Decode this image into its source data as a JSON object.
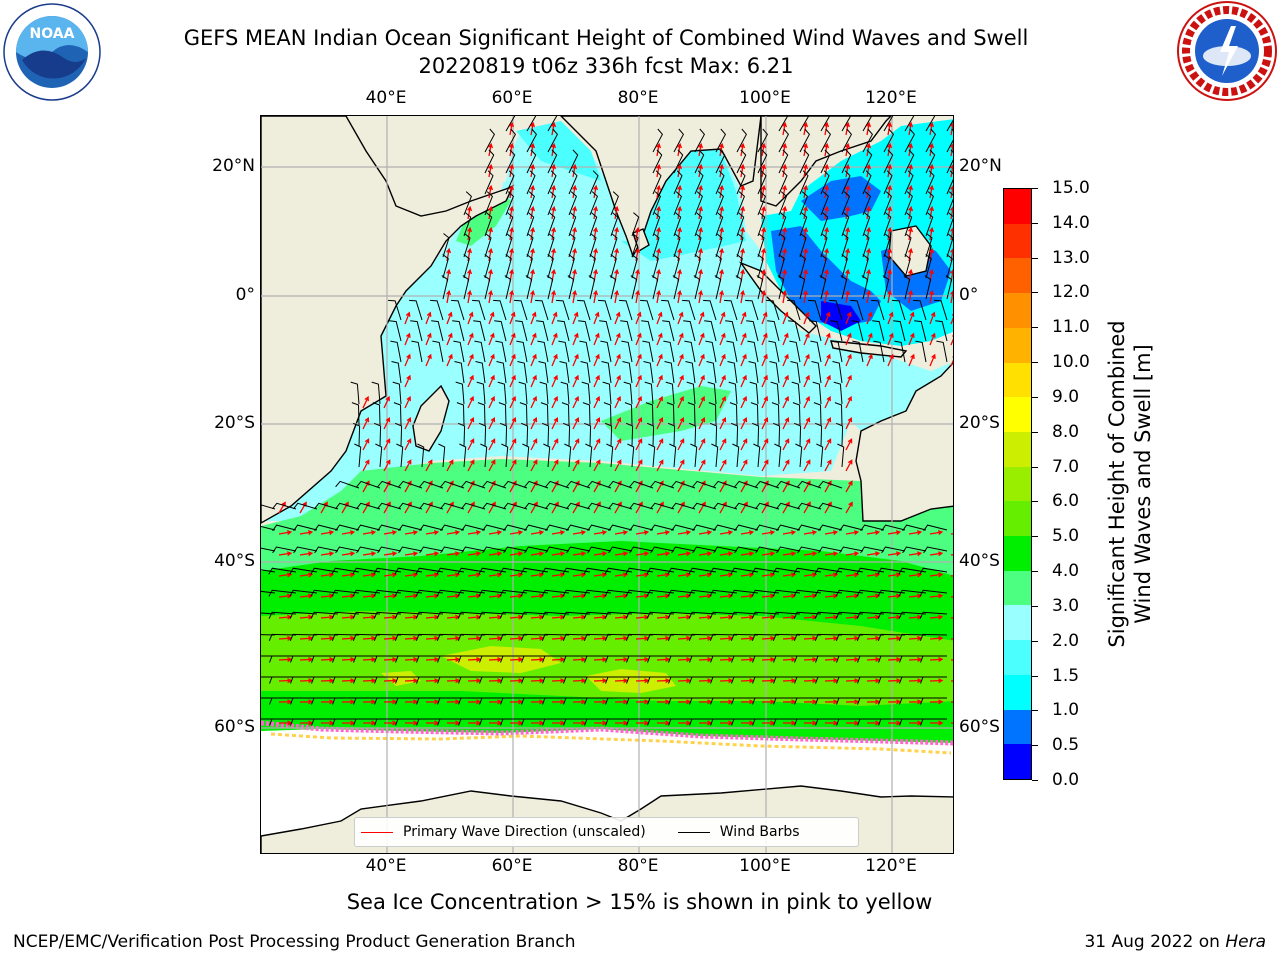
{
  "title": {
    "line1": "GEFS MEAN Indian Ocean Significant Height of Combined Wind Waves and Swell",
    "line2": "20220819 t06z 336h fcst   Max: 6.21"
  },
  "logos": {
    "noaa": {
      "text": "NOAA",
      "ring_text": "NATIONAL OCEANIC AND ATMOSPHERIC ADMINISTRATION · U.S. DEPARTMENT OF COMMERCE"
    },
    "nws": {
      "ring_text": "NATIONAL WEATHER SERVICE"
    }
  },
  "map": {
    "lon_ticks": [
      "40°E",
      "60°E",
      "80°E",
      "100°E",
      "120°E"
    ],
    "lat_ticks": [
      "20°N",
      "0°",
      "20°S",
      "40°S",
      "60°S"
    ],
    "colors": {
      "land": "#efeddc",
      "sea_ice": "#ffffff",
      "ice_edge": "#ff66cc",
      "arrows": "#ff0000",
      "barbs": "#000000",
      "grid": "#b0b0b0"
    },
    "legend": {
      "wave_direction": "Primary Wave Direction (unscaled)",
      "wind_barbs": "Wind Barbs"
    }
  },
  "colorbar": {
    "title_line1": "Significant Height of Combined",
    "title_line2": "Wind Waves and Swell [m]",
    "labels": [
      "0.0",
      "0.5",
      "1.0",
      "1.5",
      "2.0",
      "3.0",
      "4.0",
      "5.0",
      "6.0",
      "7.0",
      "8.0",
      "9.0",
      "10.0",
      "11.0",
      "12.0",
      "13.0",
      "14.0",
      "15.0"
    ],
    "colors": [
      "#0000ff",
      "#0074ff",
      "#00ffff",
      "#4cffff",
      "#99ffff",
      "#4cff80",
      "#00ee00",
      "#66ee00",
      "#99ee00",
      "#ccee00",
      "#ffff00",
      "#ffe000",
      "#ffb300",
      "#ff9000",
      "#ff6000",
      "#ff3000",
      "#ff0000"
    ]
  },
  "sea_ice_note": "Sea Ice Concentration > 15% is shown in pink to yellow",
  "footer": {
    "left": "NCEP/EMC/Verification Post Processing Product Generation Branch",
    "right_prefix": "31 Aug 2022 on ",
    "right_machine": "Hera"
  }
}
